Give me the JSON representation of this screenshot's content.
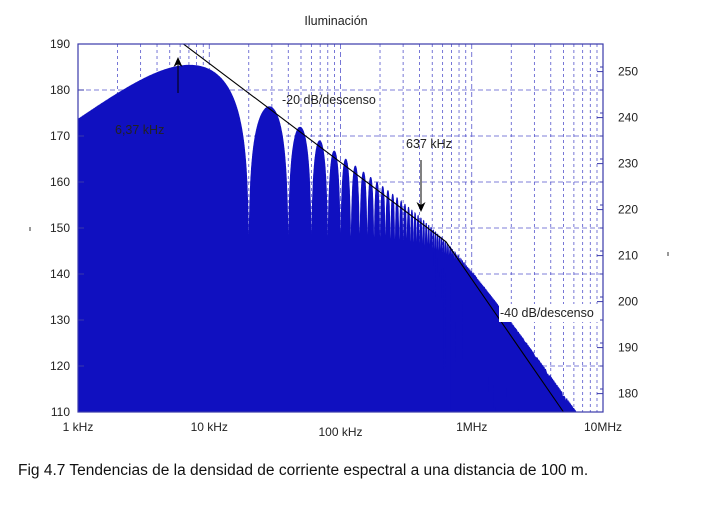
{
  "chart_data": {
    "type": "line",
    "title": "Iluminación",
    "xscale": "log",
    "xlim": [
      1000,
      10000000
    ],
    "ylim": [
      110,
      190
    ],
    "y2lim": [
      176,
      256
    ],
    "x_tick_values": [
      1000,
      10000,
      100000,
      1000000,
      10000000
    ],
    "x_tick_labels": [
      "1 kHz",
      "10 kHz",
      "100 kHz",
      "1MHz",
      "10MHz"
    ],
    "y_ticks": [
      110,
      120,
      130,
      140,
      150,
      160,
      170,
      180,
      190
    ],
    "y2_ticks": [
      180,
      190,
      200,
      210,
      220,
      230,
      240,
      250
    ],
    "grid": true,
    "envelope": {
      "name": "",
      "x": [
        1000,
        6370,
        637000,
        5000000
      ],
      "y": [
        190,
        190,
        147,
        110
      ]
    },
    "spectrum": {
      "name": "",
      "first_null_x": 20000,
      "knee_x": 6370,
      "knee2_x": 637000,
      "max_y": 189.8
    },
    "annotations": [
      {
        "id": "knee1",
        "text": "6,37 kHz",
        "x": 6370,
        "y": 190
      },
      {
        "id": "slope1",
        "text": "-20 dB/descenso",
        "x": 60000,
        "y": 177
      },
      {
        "id": "knee2",
        "text": "637 kHz",
        "x": 637000,
        "y": 147
      },
      {
        "id": "slope2",
        "text": "-40 dB/descenso",
        "x": 3000000,
        "y": 128
      }
    ]
  },
  "caption": "Fig 4.7 Tendencias de la densidad de corriente espectral a una distancia de 100 m.",
  "colors": {
    "spectrum": "#1010c0",
    "envelope": "#000000",
    "grid": "#5555cc",
    "axes": "#3a3aaa"
  }
}
